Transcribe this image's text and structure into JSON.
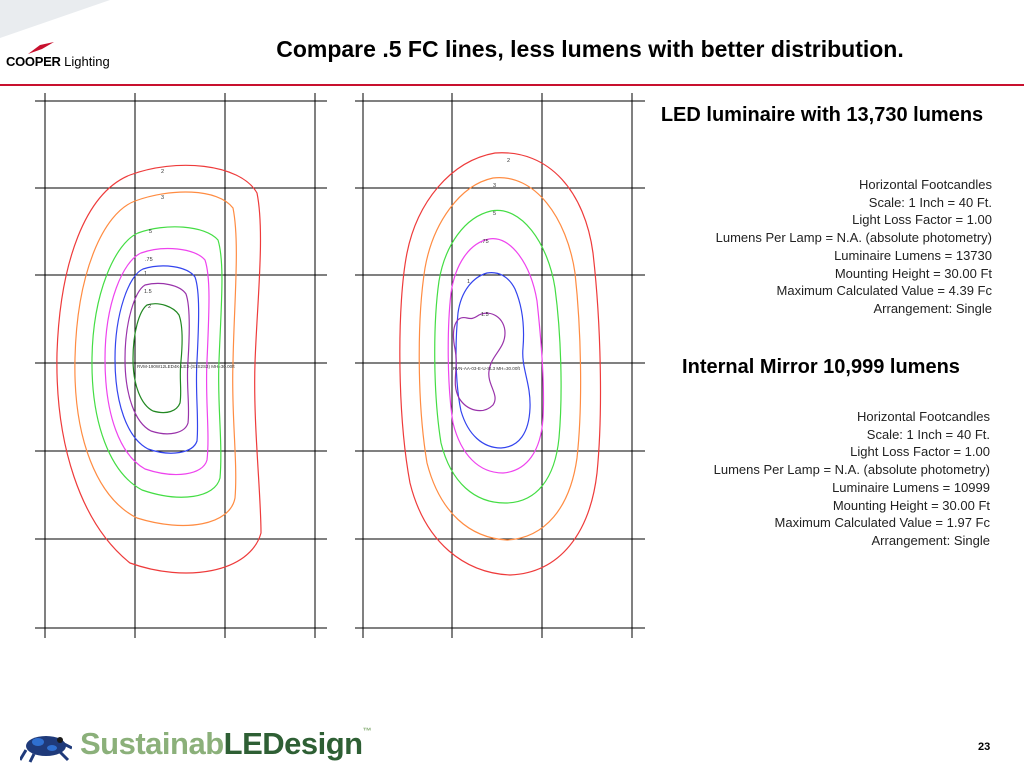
{
  "brand": {
    "bold": "COOPER",
    "light": " Lighting"
  },
  "slide": {
    "title": "Compare .5 FC lines, less lumens with better distribution.",
    "page_number": "23"
  },
  "plots": [
    {
      "contour_labels": [
        "2",
        "3",
        "5",
        ".75",
        "1",
        "1.5",
        "2"
      ],
      "luminaire_tag": "RVM-190W12LED4K-LE3-(S1S2S3) MH=30.00ft"
    },
    {
      "contour_labels": [
        "2",
        "3",
        "5",
        ".75",
        "1",
        "1.5"
      ],
      "luminaire_tag": "RVN-AA-03-E-U-SL3 MH=30.00ft"
    }
  ],
  "led": {
    "heading": "LED luminaire with 13,730 lumens",
    "lines": [
      "Horizontal Footcandles",
      "Scale: 1 Inch = 40 Ft.",
      "Light Loss Factor = 1.00",
      "Lumens Per Lamp = N.A. (absolute photometry)",
      "Luminaire Lumens = 13730",
      "Mounting Height = 30.00 Ft",
      "Maximum Calculated Value = 4.39 Fc",
      "Arrangement: Single"
    ]
  },
  "mirror": {
    "heading": "Internal Mirror 10,999 lumens",
    "lines": [
      "Horizontal Footcandles",
      "Scale: 1 Inch = 40 Ft.",
      "Light Loss Factor = 1.00",
      "Lumens Per Lamp = N.A. (absolute photometry)",
      "Luminaire Lumens = 10999",
      "Mounting Height = 30.00 Ft",
      "Maximum Calculated Value = 1.97 Fc",
      "Arrangement: Single"
    ]
  },
  "footer": {
    "word_a": "Sustainab",
    "word_b": "LED",
    "word_c": "esign",
    "mark": "™"
  },
  "colors": {
    "accent_red": "#c8102e",
    "contour_2": "#ee3b3b",
    "contour_3": "#ff8c42",
    "contour_5": "#44dd44",
    "contour_75": "#ee44ee",
    "contour_1": "#3344ee",
    "contour_15": "#9933aa",
    "contour_2_inner": "#228822"
  }
}
